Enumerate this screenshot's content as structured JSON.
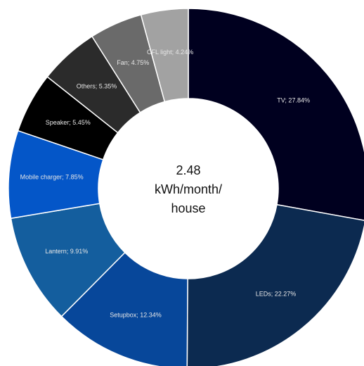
{
  "chart_data": {
    "type": "donut",
    "center_label": [
      "2.48",
      "kWh/month/",
      "house"
    ],
    "categories": [
      "TV",
      "LEDs",
      "Setupbox",
      "Lantern",
      "Mobile charger",
      "Speaker",
      "Others",
      "Fan",
      "CFL light"
    ],
    "values": [
      27.84,
      22.27,
      12.34,
      9.91,
      7.85,
      5.45,
      5.35,
      4.75,
      4.24
    ],
    "value_labels": [
      "TV; 27.84%",
      "LEDs; 22.27%",
      "Setupbox; 12.34%",
      "Lantern; 9.91%",
      "Mobile charger; 7.85%",
      "Speaker; 5.45%",
      "Others; 5.35%",
      "Fan; 4.75%",
      "CFL light; 4.24%"
    ],
    "colors": [
      "#00001f",
      "#0c2a50",
      "#07479a",
      "#145e9e",
      "#0456c8",
      "#000000",
      "#2b2b2b",
      "#6a6a6a",
      "#a2a2a2"
    ]
  }
}
